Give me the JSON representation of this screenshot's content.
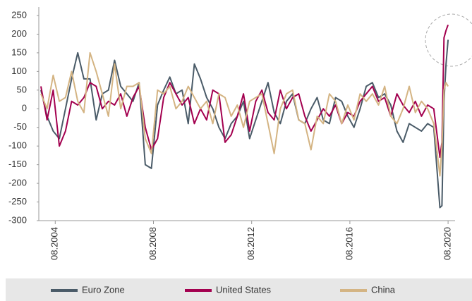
{
  "chart_data": {
    "type": "line",
    "x": [
      "2004-01",
      "2004-04",
      "2004-07",
      "2004-10",
      "2005-01",
      "2005-04",
      "2005-07",
      "2005-10",
      "2006-01",
      "2006-04",
      "2006-07",
      "2006-10",
      "2007-01",
      "2007-04",
      "2007-07",
      "2007-10",
      "2008-01",
      "2008-04",
      "2008-07",
      "2008-10",
      "2009-01",
      "2009-04",
      "2009-07",
      "2009-10",
      "2010-01",
      "2010-04",
      "2010-07",
      "2010-10",
      "2011-01",
      "2011-04",
      "2011-07",
      "2011-10",
      "2012-01",
      "2012-04",
      "2012-07",
      "2012-10",
      "2013-01",
      "2013-04",
      "2013-07",
      "2013-10",
      "2014-01",
      "2014-04",
      "2014-07",
      "2014-10",
      "2015-01",
      "2015-04",
      "2015-07",
      "2015-10",
      "2016-01",
      "2016-04",
      "2016-07",
      "2016-10",
      "2017-01",
      "2017-04",
      "2017-07",
      "2017-10",
      "2018-01",
      "2018-04",
      "2018-07",
      "2018-10",
      "2019-01",
      "2019-04",
      "2019-07",
      "2019-10",
      "2020-01",
      "2020-04",
      "2020-05",
      "2020-06",
      "2020-07",
      "2020-08"
    ],
    "xlim": [
      "2004-01",
      "2020-09"
    ],
    "xticks": [
      {
        "value": "2004-08",
        "label": "08.2004"
      },
      {
        "value": "2008-08",
        "label": "08.2008"
      },
      {
        "value": "2012-08",
        "label": "08.2012"
      },
      {
        "value": "2016-08",
        "label": "08.2016"
      },
      {
        "value": "2020-08",
        "label": "08.2020"
      }
    ],
    "ylim": [
      -300,
      250
    ],
    "yticks": [
      -300,
      -250,
      -200,
      -150,
      -100,
      -50,
      0,
      50,
      100,
      150,
      200,
      250
    ],
    "grid": false,
    "legend": "bottom",
    "series": [
      {
        "name": "Euro Zone",
        "color": "#4a5b68",
        "values": [
          50,
          -20,
          -60,
          -80,
          0,
          80,
          150,
          80,
          80,
          -30,
          40,
          50,
          130,
          60,
          40,
          20,
          70,
          -150,
          -160,
          10,
          50,
          85,
          40,
          50,
          -40,
          120,
          80,
          30,
          0,
          -50,
          -80,
          -40,
          -20,
          20,
          -80,
          -30,
          20,
          70,
          -10,
          -40,
          20,
          40,
          -30,
          -40,
          0,
          30,
          -30,
          -40,
          30,
          20,
          -20,
          -50,
          0,
          60,
          70,
          30,
          40,
          10,
          -60,
          -90,
          -40,
          -50,
          -60,
          -40,
          -50,
          -265,
          -260,
          20,
          120,
          185
        ]
      },
      {
        "name": "United States",
        "color": "#a3004f",
        "values": [
          60,
          -30,
          50,
          -100,
          -60,
          20,
          10,
          30,
          70,
          60,
          0,
          20,
          10,
          40,
          -20,
          30,
          60,
          -50,
          -110,
          -80,
          30,
          70,
          40,
          10,
          30,
          -40,
          0,
          -30,
          50,
          40,
          -90,
          -70,
          -20,
          40,
          -60,
          20,
          50,
          -10,
          -30,
          50,
          0,
          30,
          40,
          -20,
          -60,
          -30,
          0,
          -20,
          10,
          -40,
          -10,
          -20,
          20,
          40,
          60,
          20,
          30,
          -20,
          40,
          10,
          -10,
          20,
          -20,
          10,
          0,
          -130,
          -90,
          190,
          210,
          225
        ]
      },
      {
        "name": "China",
        "color": "#d4b483",
        "values": [
          40,
          0,
          90,
          20,
          30,
          100,
          20,
          -10,
          150,
          100,
          40,
          -20,
          120,
          0,
          60,
          60,
          70,
          -80,
          -120,
          50,
          40,
          60,
          0,
          20,
          60,
          30,
          0,
          20,
          -40,
          40,
          30,
          -20,
          10,
          -50,
          20,
          30,
          40,
          -40,
          -120,
          0,
          40,
          50,
          -30,
          -40,
          -110,
          -20,
          -40,
          40,
          20,
          -40,
          10,
          -30,
          40,
          20,
          40,
          10,
          60,
          -20,
          -40,
          0,
          60,
          -10,
          20,
          0,
          -40,
          -180,
          -100,
          50,
          70,
          60
        ]
      }
    ]
  }
}
